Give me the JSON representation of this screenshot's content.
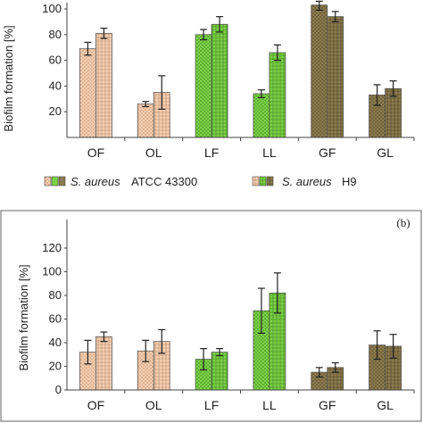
{
  "colors": {
    "OF": "#f8cfb0",
    "OL": "#f8cfb0",
    "LF": "#7bd245",
    "LL": "#7bd245",
    "GF": "#8c7c4e",
    "GL": "#8c7c4e"
  },
  "legend": {
    "series1_species": "S. aureus",
    "series1_strain": "ATCC 43300",
    "series2_species": "S. aureus",
    "series2_strain": "H9"
  },
  "chart_data": [
    {
      "type": "bar",
      "panel_label": "",
      "ylabel": "Biofilm formation [%]",
      "ylim": [
        0,
        100
      ],
      "yticks": [
        20,
        40,
        60,
        80,
        100
      ],
      "categories": [
        "OF",
        "OL",
        "LF",
        "LL",
        "GF",
        "GL"
      ],
      "series": [
        {
          "name": "S. aureus ATCC 43300",
          "values": [
            69,
            26,
            80,
            34,
            103,
            33
          ],
          "errors": [
            5,
            2,
            4,
            3,
            4,
            8
          ]
        },
        {
          "name": "S. aureus H9",
          "values": [
            81,
            35,
            88,
            66,
            94,
            38
          ],
          "errors": [
            4,
            13,
            6,
            6,
            4,
            6
          ]
        }
      ],
      "legend_position": "bottom",
      "grid": false
    },
    {
      "type": "bar",
      "panel_label": "(b)",
      "ylabel": "Biofilm formation [%]",
      "ylim": [
        0,
        120
      ],
      "yticks": [
        0,
        20,
        40,
        60,
        80,
        100,
        120
      ],
      "categories": [
        "OF",
        "OL",
        "LF",
        "LL",
        "GF",
        "GL"
      ],
      "series": [
        {
          "name": "S. aureus ATCC 43300",
          "values": [
            32,
            33,
            26,
            67,
            15,
            38
          ],
          "errors": [
            10,
            9,
            9,
            19,
            4,
            12
          ]
        },
        {
          "name": "S. aureus H9",
          "values": [
            45,
            41,
            32,
            82,
            19,
            37
          ],
          "errors": [
            4,
            10,
            3,
            17,
            4,
            10
          ]
        }
      ],
      "grid": false
    }
  ]
}
